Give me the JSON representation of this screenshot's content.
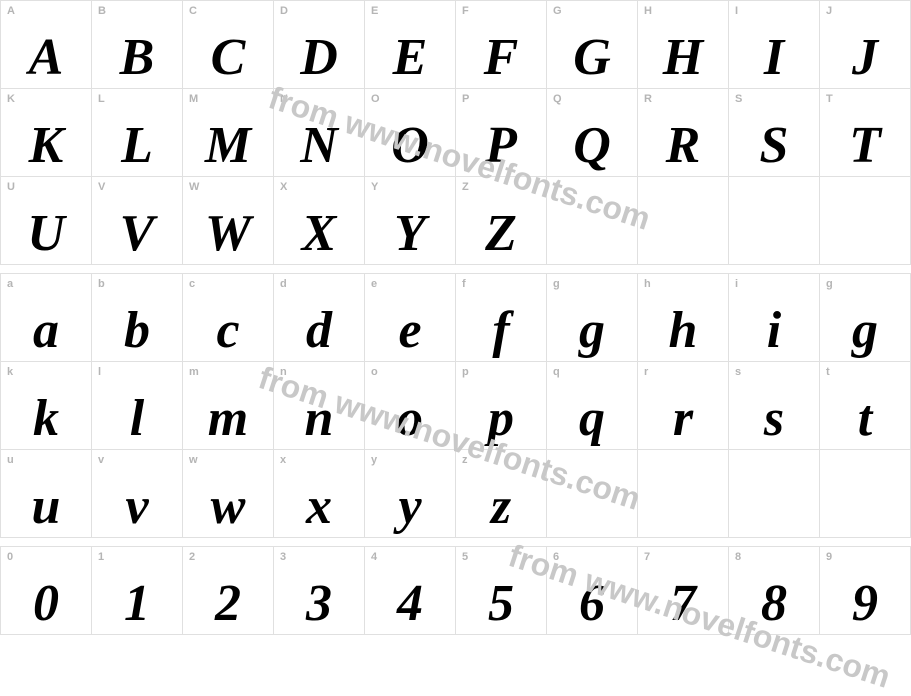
{
  "watermark_text": "from www.novelfonts.com",
  "watermark_color": "#c8c8c8",
  "grid_border_color": "#e0e0e0",
  "label_color": "#b5b5b5",
  "glyph_color": "#000000",
  "background_color": "#ffffff",
  "blocks": [
    {
      "rows": [
        [
          {
            "label": "A",
            "glyph": "A"
          },
          {
            "label": "B",
            "glyph": "B"
          },
          {
            "label": "C",
            "glyph": "C"
          },
          {
            "label": "D",
            "glyph": "D"
          },
          {
            "label": "E",
            "glyph": "E"
          },
          {
            "label": "F",
            "glyph": "F"
          },
          {
            "label": "G",
            "glyph": "G"
          },
          {
            "label": "H",
            "glyph": "H"
          },
          {
            "label": "I",
            "glyph": "I"
          },
          {
            "label": "J",
            "glyph": "J"
          }
        ],
        [
          {
            "label": "K",
            "glyph": "K"
          },
          {
            "label": "L",
            "glyph": "L"
          },
          {
            "label": "M",
            "glyph": "M"
          },
          {
            "label": "N",
            "glyph": "N"
          },
          {
            "label": "O",
            "glyph": "O"
          },
          {
            "label": "P",
            "glyph": "P"
          },
          {
            "label": "Q",
            "glyph": "Q"
          },
          {
            "label": "R",
            "glyph": "R"
          },
          {
            "label": "S",
            "glyph": "S"
          },
          {
            "label": "T",
            "glyph": "T"
          }
        ],
        [
          {
            "label": "U",
            "glyph": "U"
          },
          {
            "label": "V",
            "glyph": "V"
          },
          {
            "label": "W",
            "glyph": "W"
          },
          {
            "label": "X",
            "glyph": "X"
          },
          {
            "label": "Y",
            "glyph": "Y"
          },
          {
            "label": "Z",
            "glyph": "Z"
          },
          {
            "label": "",
            "glyph": ""
          },
          {
            "label": "",
            "glyph": ""
          },
          {
            "label": "",
            "glyph": ""
          },
          {
            "label": "",
            "glyph": ""
          }
        ]
      ]
    },
    {
      "rows": [
        [
          {
            "label": "a",
            "glyph": "a"
          },
          {
            "label": "b",
            "glyph": "b"
          },
          {
            "label": "c",
            "glyph": "c"
          },
          {
            "label": "d",
            "glyph": "d"
          },
          {
            "label": "e",
            "glyph": "e"
          },
          {
            "label": "f",
            "glyph": "f"
          },
          {
            "label": "g",
            "glyph": "g"
          },
          {
            "label": "h",
            "glyph": "h"
          },
          {
            "label": "i",
            "glyph": "i"
          },
          {
            "label": "g",
            "glyph": "g"
          }
        ],
        [
          {
            "label": "k",
            "glyph": "k"
          },
          {
            "label": "l",
            "glyph": "l"
          },
          {
            "label": "m",
            "glyph": "m"
          },
          {
            "label": "n",
            "glyph": "n"
          },
          {
            "label": "o",
            "glyph": "o"
          },
          {
            "label": "p",
            "glyph": "p"
          },
          {
            "label": "q",
            "glyph": "q"
          },
          {
            "label": "r",
            "glyph": "r"
          },
          {
            "label": "s",
            "glyph": "s"
          },
          {
            "label": "t",
            "glyph": "t"
          }
        ],
        [
          {
            "label": "u",
            "glyph": "u"
          },
          {
            "label": "v",
            "glyph": "v"
          },
          {
            "label": "w",
            "glyph": "w"
          },
          {
            "label": "x",
            "glyph": "x"
          },
          {
            "label": "y",
            "glyph": "y"
          },
          {
            "label": "z",
            "glyph": "z"
          },
          {
            "label": "",
            "glyph": ""
          },
          {
            "label": "",
            "glyph": ""
          },
          {
            "label": "",
            "glyph": ""
          },
          {
            "label": "",
            "glyph": ""
          }
        ]
      ]
    },
    {
      "rows": [
        [
          {
            "label": "0",
            "glyph": "0"
          },
          {
            "label": "1",
            "glyph": "1"
          },
          {
            "label": "2",
            "glyph": "2"
          },
          {
            "label": "3",
            "glyph": "3"
          },
          {
            "label": "4",
            "glyph": "4"
          },
          {
            "label": "5",
            "glyph": "5"
          },
          {
            "label": "6",
            "glyph": "6"
          },
          {
            "label": "7",
            "glyph": "7"
          },
          {
            "label": "8",
            "glyph": "8"
          },
          {
            "label": "9",
            "glyph": "9"
          }
        ]
      ]
    }
  ]
}
